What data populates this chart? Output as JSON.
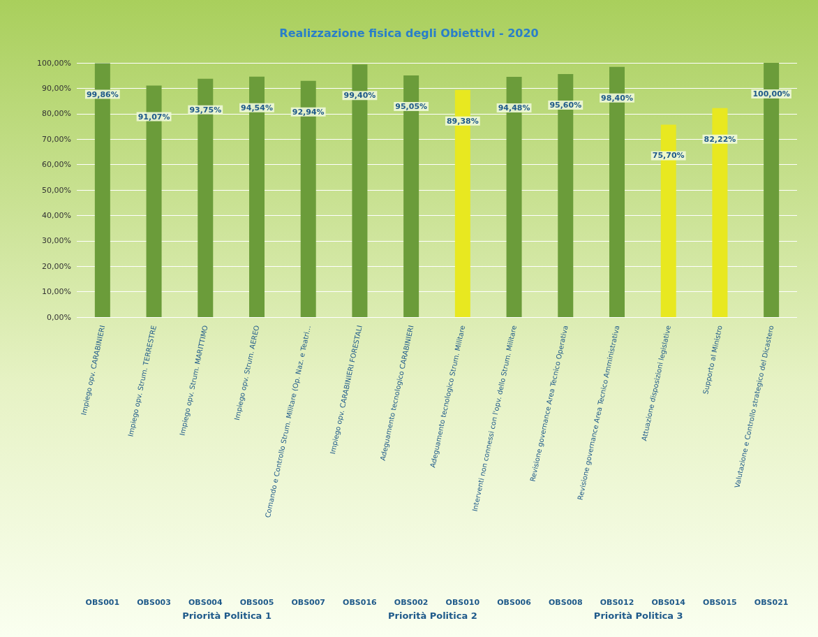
{
  "chart_data": {
    "type": "bar",
    "title": "Realizzazione fisica degli Obiettivi - 2020",
    "categories": [
      "Impiego opv. CARABINIERI\nOBS001",
      "Impiego opv. Strum. TERRESTRE\nOBS003",
      "Impiego opv. Strum. MARITTIMO\nOBS004",
      "Impiego opv. Strum. AEREO\nOBS005",
      "Comando e Controllo Strum. Militare (Op. Naz. e Teatri...\nOBS007",
      "Impiego opv. CARABINIERI FORESTALI\nOBS016",
      "Adeguamento tecnologico CARABINIERI\nOBS002",
      "Adeguamento tecnologico Strum. Militare\nOBS010",
      "Interventi non connessi con l'opv. dello Strum. Militare\nOBS006",
      "Revisione governance Area Tecnico Operativa\nOBS008",
      "Revisione governance Area Tecnico Amministrativa\nOBS012",
      "Attuazione disposizioni legislative\nOBS014",
      "Supporto al Ministro\nOBS015",
      "Valutazione e Controllo strategico del Dicastero\nOBS021"
    ],
    "values": [
      99.86,
      91.07,
      93.75,
      94.54,
      92.94,
      99.4,
      95.05,
      89.38,
      94.48,
      95.6,
      98.4,
      75.7,
      82.22,
      100
    ],
    "value_labels": [
      "99,86%",
      "91,07%",
      "93,75%",
      "94,54%",
      "92,94%",
      "99,40%",
      "95,05%",
      "89,38%",
      "94,48%",
      "95,60%",
      "98,40%",
      "75,70%",
      "82,22%",
      "100,00%"
    ],
    "colors": [
      "#6b9c3a",
      "#6b9c3a",
      "#6b9c3a",
      "#6b9c3a",
      "#6b9c3a",
      "#6b9c3a",
      "#6b9c3a",
      "#e8e820",
      "#6b9c3a",
      "#6b9c3a",
      "#6b9c3a",
      "#e8e820",
      "#e8e820",
      "#6b9c3a"
    ],
    "ylim": [
      0,
      100
    ],
    "yticks": [
      {
        "value": 0,
        "label": "0,00%"
      },
      {
        "value": 10,
        "label": "10,00%"
      },
      {
        "value": 20,
        "label": "20,00%"
      },
      {
        "value": 30,
        "label": "30,00%"
      },
      {
        "value": 40,
        "label": "40,00%"
      },
      {
        "value": 50,
        "label": "50,00%"
      },
      {
        "value": 60,
        "label": "60,00%"
      },
      {
        "value": 70,
        "label": "70,00%"
      },
      {
        "value": 80,
        "label": "80,00%"
      },
      {
        "value": 90,
        "label": "90,00%"
      },
      {
        "value": 100,
        "label": "100,00%"
      }
    ],
    "grid": "y",
    "annotations": [
      "Priorità Politica 1",
      "Priorità Politica 2",
      "Priorità Politica 3"
    ]
  }
}
